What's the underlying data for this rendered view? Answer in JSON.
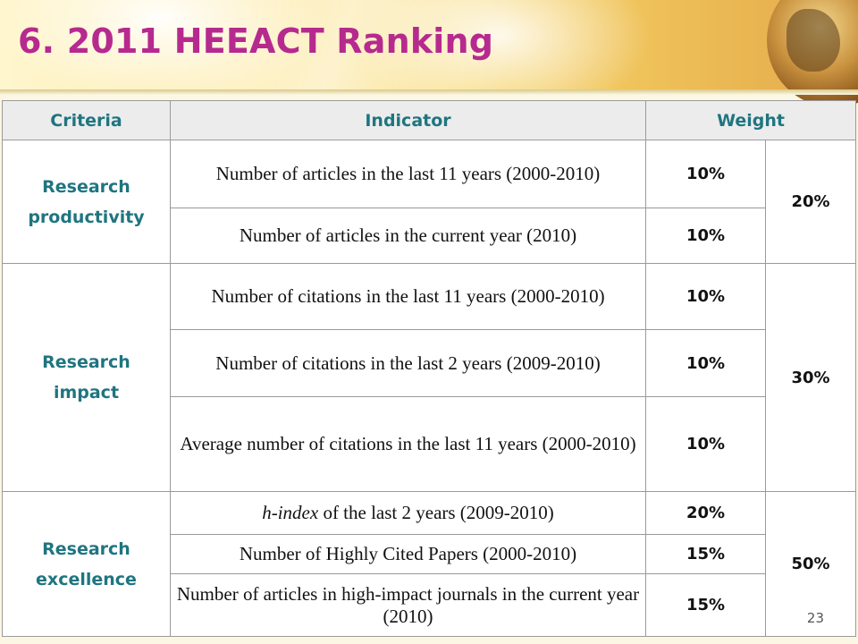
{
  "slide": {
    "title": "6. 2011 HEEACT Ranking",
    "page_number": "23"
  },
  "table": {
    "headers": [
      "Criteria",
      "Indicator",
      "Weight"
    ],
    "groups": [
      {
        "criteria": "Research productivity",
        "group_weight": "20%",
        "rows": [
          {
            "indicator": "Number of articles in the last 11 years (2000-2010)",
            "weight": "10%"
          },
          {
            "indicator": "Number of articles in the current year (2010)",
            "weight": "10%"
          }
        ]
      },
      {
        "criteria": "Research impact",
        "group_weight": "30%",
        "rows": [
          {
            "indicator": "Number of citations in the last 11 years (2000-2010)",
            "weight": "10%"
          },
          {
            "indicator": "Number of citations in the last 2 years (2009-2010)",
            "weight": "10%"
          },
          {
            "indicator": "Average number of citations in the last 11 years (2000-2010)",
            "weight": "10%"
          }
        ]
      },
      {
        "criteria": "Research excellence",
        "group_weight": "50%",
        "rows": [
          {
            "indicator_italic": "h-index",
            "indicator": " of the last 2 years (2009-2010)",
            "weight": "20%"
          },
          {
            "indicator": "Number of Highly Cited Papers (2000-2010)",
            "weight": "15%"
          },
          {
            "indicator": "Number of articles in high-impact journals in the current year (2010)",
            "weight": "15%"
          }
        ]
      }
    ]
  }
}
